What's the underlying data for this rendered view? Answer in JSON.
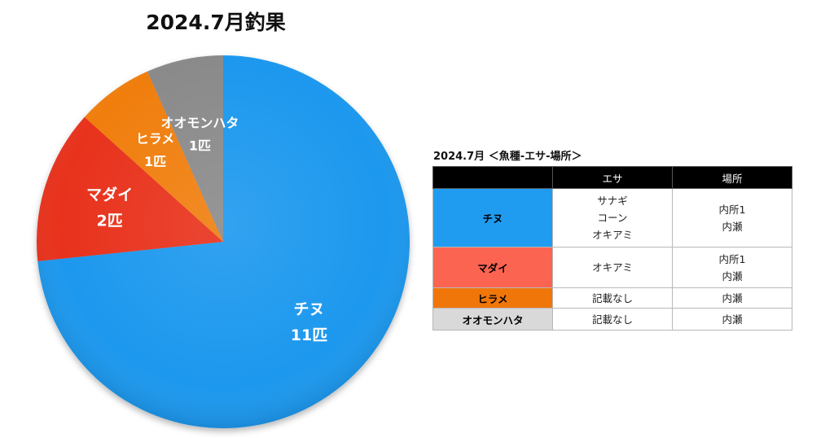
{
  "chart_data": {
    "type": "pie",
    "title": "2024.7月釣果",
    "unit": "匹",
    "slices": [
      {
        "label": "チヌ",
        "value": 11,
        "display": "11匹",
        "color": "#1e98ee"
      },
      {
        "label": "マダイ",
        "value": 2,
        "display": "2匹",
        "color": "#e8321c"
      },
      {
        "label": "ヒラメ",
        "value": 1,
        "display": "1匹",
        "color": "#f07e10"
      },
      {
        "label": "オオモンハタ",
        "value": 1,
        "display": "1匹",
        "color": "#8a8a8a"
      }
    ]
  },
  "table": {
    "title": "2024.7月 ＜魚種-エサ-場所＞",
    "headers": [
      "",
      "エサ",
      "場所"
    ],
    "rows": [
      {
        "species": "チヌ",
        "color": "#1f9cf0",
        "bait": [
          "サナギ",
          "コーン",
          "オキアミ"
        ],
        "place": [
          "内所1",
          "内瀬"
        ]
      },
      {
        "species": "マダイ",
        "color": "#fb6451",
        "bait": [
          "オキアミ"
        ],
        "place": [
          "内所1",
          "内瀬"
        ]
      },
      {
        "species": "ヒラメ",
        "color": "#f0760a",
        "bait": [
          "記載なし"
        ],
        "place": [
          "内瀬"
        ]
      },
      {
        "species": "オオモンハタ",
        "color": "#d9d9d9",
        "bait": [
          "記載なし"
        ],
        "place": [
          "内瀬"
        ]
      }
    ]
  }
}
